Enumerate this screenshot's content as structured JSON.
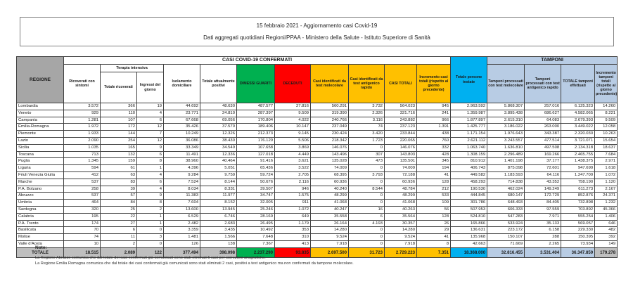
{
  "title": {
    "line1": "15 febbraio 2021 - Aggiornamento casi Covid-19",
    "line2": "Dati aggregati quotidiani Regioni/PPAA - Ministero della Salute - Istituto Superiore di Sanità"
  },
  "table": {
    "bands": {
      "confirmed": "CASI COVID-19 CONFERMATI",
      "tamponi": "TAMPONI",
      "terapia_intensiva": "Terapia intensiva"
    },
    "columns": {
      "regione": "REGIONE",
      "ricoverati": "Ricoverati con sintomi",
      "ti_totale": "Totale ricoverati",
      "ti_ingressi": "Ingressi del giorno",
      "isolamento": "Isolamento domiciliare",
      "attualmente_positivi": "Totale attualmente positivi",
      "dimessi": "DIMESSI GUARITI",
      "deceduti": "DECEDUTI",
      "casi_molecolare": "Casi identificati da test molecolare",
      "casi_antigenico": "Casi identificati da test antigenico rapido",
      "casi_totali": "CASI TOTALI",
      "incremento_casi": "Incremento casi totali (rispetto al giorno precedente)",
      "persone_testate": "Totale persone testate",
      "tamponi_molecolare": "Tamponi processati con test molecolare",
      "tamponi_antigenico": "Tamponi processati con test antigenico rapido",
      "tamponi_totale": "TOTALE tamponi effettuati",
      "incremento_tamponi": "Incremento tamponi totali (rispetto al giorno precedente)"
    },
    "rows": [
      {
        "region": "Lombardia",
        "values": [
          "3.572",
          "366",
          "19",
          "44.692",
          "48.630",
          "487.577",
          "27.816",
          "560.291",
          "3.732",
          "564.023",
          "945",
          "2.963.592",
          "5.868.307",
          "257.016",
          "6.125.323",
          "14.260"
        ]
      },
      {
        "region": "Veneto",
        "values": [
          "929",
          "110",
          "4",
          "23.771",
          "24.810",
          "287.397",
          "9.509",
          "319.390",
          "2.326",
          "321.716",
          "241",
          "1.359.987",
          "3.895.438",
          "686.627",
          "4.582.065",
          "8.221"
        ]
      },
      {
        "region": "Campania",
        "values": [
          "1.281",
          "107",
          "6",
          "67.668",
          "69.056",
          "170.804",
          "4.022",
          "240.766",
          "3.116",
          "243.882",
          "966",
          "1.877.897",
          "2.615.310",
          "64.083",
          "2.679.393",
          "9.509"
        ]
      },
      {
        "region": "Emilia-Romagna",
        "values": [
          "1.972",
          "172",
          "12",
          "35.426",
          "37.570",
          "189.406",
          "10.147",
          "237.049",
          "74",
          "237.123",
          "1.391",
          "1.425.777",
          "3.186.022",
          "263.000",
          "3.449.022",
          "12.058"
        ]
      },
      {
        "region": "Piemonte",
        "values": [
          "1.933",
          "144",
          "7",
          "10.249",
          "12.326",
          "212.373",
          "9.145",
          "230.424",
          "3.420",
          "233.844",
          "438",
          "1.171.154",
          "1.976.643",
          "343.387",
          "2.320.030",
          "10.263"
        ]
      },
      {
        "region": "Lazio",
        "values": [
          "2.090",
          "254",
          "12",
          "36.086",
          "38.430",
          "176.129",
          "5.506",
          "218.342",
          "1.723",
          "220.065",
          "760",
          "2.621.112",
          "3.243.557",
          "477.514",
          "3.721.071",
          "15.654"
        ]
      },
      {
        "region": "Sicilia",
        "values": [
          "1.035",
          "165",
          "9",
          "33.349",
          "34.549",
          "107.658",
          "3.869",
          "146.076",
          "0",
          "146.076",
          "332",
          "1.063.740",
          "1.636.810",
          "497.508",
          "2.134.318",
          "18.637"
        ]
      },
      {
        "region": "Toscana",
        "values": [
          "713",
          "132",
          "6",
          "11.491",
          "12.336",
          "127.018",
          "4.449",
          "143.496",
          "307",
          "143.803",
          "428",
          "1.308.159",
          "2.296.489",
          "169.266",
          "2.465.755",
          "7.684"
        ]
      },
      {
        "region": "Puglia",
        "values": [
          "1.345",
          "159",
          "8",
          "38.960",
          "40.464",
          "91.416",
          "3.621",
          "135.028",
          "473",
          "135.501",
          "345",
          "810.912",
          "1.401.198",
          "37.177",
          "1.438.375",
          "2.971"
        ]
      },
      {
        "region": "Liguria",
        "values": [
          "594",
          "61",
          "1",
          "4.396",
          "5.051",
          "65.436",
          "3.522",
          "74.009",
          "0",
          "74.009",
          "194",
          "406.743",
          "875.098",
          "72.601",
          "947.699",
          "1.618"
        ]
      },
      {
        "region": "Friuli Venezia Giulia",
        "values": [
          "412",
          "63",
          "4",
          "9.284",
          "9.759",
          "59.724",
          "2.705",
          "68.395",
          "3.793",
          "72.188",
          "41",
          "449.582",
          "1.183.593",
          "64.116",
          "1.247.709",
          "1.072"
        ]
      },
      {
        "region": "Marche",
        "values": [
          "537",
          "83",
          "6",
          "7.524",
          "8.144",
          "50.676",
          "2.116",
          "60.936",
          "0",
          "60.936",
          "128",
          "458.293",
          "714.838",
          "43.352",
          "758.190",
          "1.120"
        ]
      },
      {
        "region": "P.A. Bolzano",
        "values": [
          "258",
          "39",
          "4",
          "8.034",
          "8.331",
          "39.507",
          "946",
          "40.240",
          "8.544",
          "48.784",
          "212",
          "190.530",
          "462.024",
          "149.249",
          "611.273",
          "2.167"
        ]
      },
      {
        "region": "Abruzzo",
        "values": [
          "537",
          "57",
          "9",
          "11.383",
          "11.977",
          "34.747",
          "1.575",
          "48.299",
          "0",
          "48.299",
          "533",
          "444.845",
          "680.147",
          "172.729",
          "852.876",
          "24.371"
        ]
      },
      {
        "region": "Umbria",
        "values": [
          "464",
          "84",
          "8",
          "7.604",
          "8.152",
          "32.005",
          "911",
          "41.068",
          "0",
          "41.068",
          "109",
          "301.786",
          "648.493",
          "84.405",
          "732.898",
          "1.232"
        ]
      },
      {
        "region": "Sardegna",
        "values": [
          "320",
          "25",
          "2",
          "13.600",
          "13.945",
          "25.246",
          "1.072",
          "40.247",
          "16",
          "40.263",
          "56",
          "507.953",
          "606.333",
          "97.559",
          "703.892",
          "45.366"
        ]
      },
      {
        "region": "Calabria",
        "values": [
          "195",
          "22",
          "1",
          "6.529",
          "6.746",
          "28.169",
          "649",
          "35.558",
          "6",
          "35.564",
          "128",
          "524.810",
          "547.283",
          "7.971",
          "555.254",
          "1.406"
        ]
      },
      {
        "region": "P.A. Trento",
        "values": [
          "174",
          "27",
          "1",
          "2.482",
          "2.683",
          "26.495",
          "1.179",
          "26.164",
          "4.193",
          "30.357",
          "26",
          "165.866",
          "533.924",
          "35.133",
          "569.057",
          "646"
        ]
      },
      {
        "region": "Basilicata",
        "values": [
          "70",
          "6",
          "0",
          "3.359",
          "3.435",
          "10.492",
          "353",
          "14.280",
          "0",
          "14.280",
          "29",
          "136.631",
          "223.172",
          "6.158",
          "229.330",
          "482"
        ]
      },
      {
        "region": "Molise",
        "values": [
          "74",
          "11",
          "3",
          "1.481",
          "1.566",
          "7.648",
          "310",
          "9.524",
          "0",
          "9.524",
          "41",
          "135.968",
          "150.107",
          "288",
          "150.395",
          "392"
        ]
      },
      {
        "region": "Valle d'Aosta",
        "values": [
          "10",
          "2",
          "0",
          "126",
          "138",
          "7.367",
          "413",
          "7.918",
          "0",
          "7.918",
          "8",
          "42.663",
          "71.669",
          "2.265",
          "73.934",
          "149"
        ]
      }
    ],
    "total_row": {
      "label": "TOTALE",
      "values": [
        "18.515",
        "2.089",
        "122",
        "377.494",
        "398.098",
        "2.237.290",
        "93.835",
        "2.697.500",
        "31.723",
        "2.729.223",
        "7.351",
        "18.368.000",
        "32.816.455",
        "3.531.404",
        "36.347.859",
        "179.278"
      ]
    }
  },
  "notes": {
    "title": "Note:",
    "items": [
      "La Regione Abruzzo comunica che dal totale dei casi confermati già comunicati sono stati eliminati 5 casi per correzioni anagrafiche.",
      "La Regione Emilia Romagna comunica che dal totale dei casi confermati già comunicati sono stati eliminati 2 casi, positivi a test antigenico ma non confermati da tampone molecolare."
    ]
  },
  "colors": {
    "green": "#00b050",
    "red": "#ff0000",
    "yellow": "#ffc000",
    "blue": "#00b0f0",
    "light_blue": "#b8cce4",
    "header_gray": "#a6a6a6",
    "total_gray": "#bfbfbf"
  }
}
